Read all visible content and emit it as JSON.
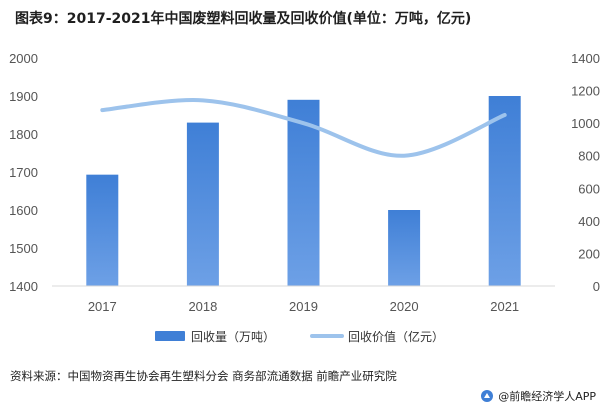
{
  "title": "图表9：2017-2021年中国废塑料回收量及回收价值(单位：万吨，亿元)",
  "source": "资料来源：中国物资再生协会再生塑料分会 商务部流通数据 前瞻产业研究院",
  "credit": "@前瞻经济学人APP",
  "colors": {
    "bar": "#3f7fd6",
    "line": "#9dc3ec",
    "title_accent": "#1f1f1f"
  },
  "chart_data": {
    "type": "bar",
    "categories": [
      "2017",
      "2018",
      "2019",
      "2020",
      "2021"
    ],
    "series": [
      {
        "name": "回收量（万吨）",
        "type": "bar",
        "axis": "left",
        "values": [
          1693,
          1830,
          1890,
          1600,
          1900
        ]
      },
      {
        "name": "回收价值（亿元）",
        "type": "line",
        "axis": "right",
        "smooth": true,
        "values": [
          1080,
          1140,
          1000,
          800,
          1050
        ]
      }
    ],
    "y_left": {
      "lim": [
        1400,
        2000
      ],
      "ticks": [
        "1400",
        "1500",
        "1600",
        "1700",
        "1800",
        "1900",
        "2000"
      ]
    },
    "y_right": {
      "lim": [
        0,
        1400
      ],
      "ticks": [
        "0",
        "200",
        "400",
        "600",
        "800",
        "1000",
        "1200",
        "1400"
      ]
    },
    "grid": false,
    "legend": "bottom"
  }
}
